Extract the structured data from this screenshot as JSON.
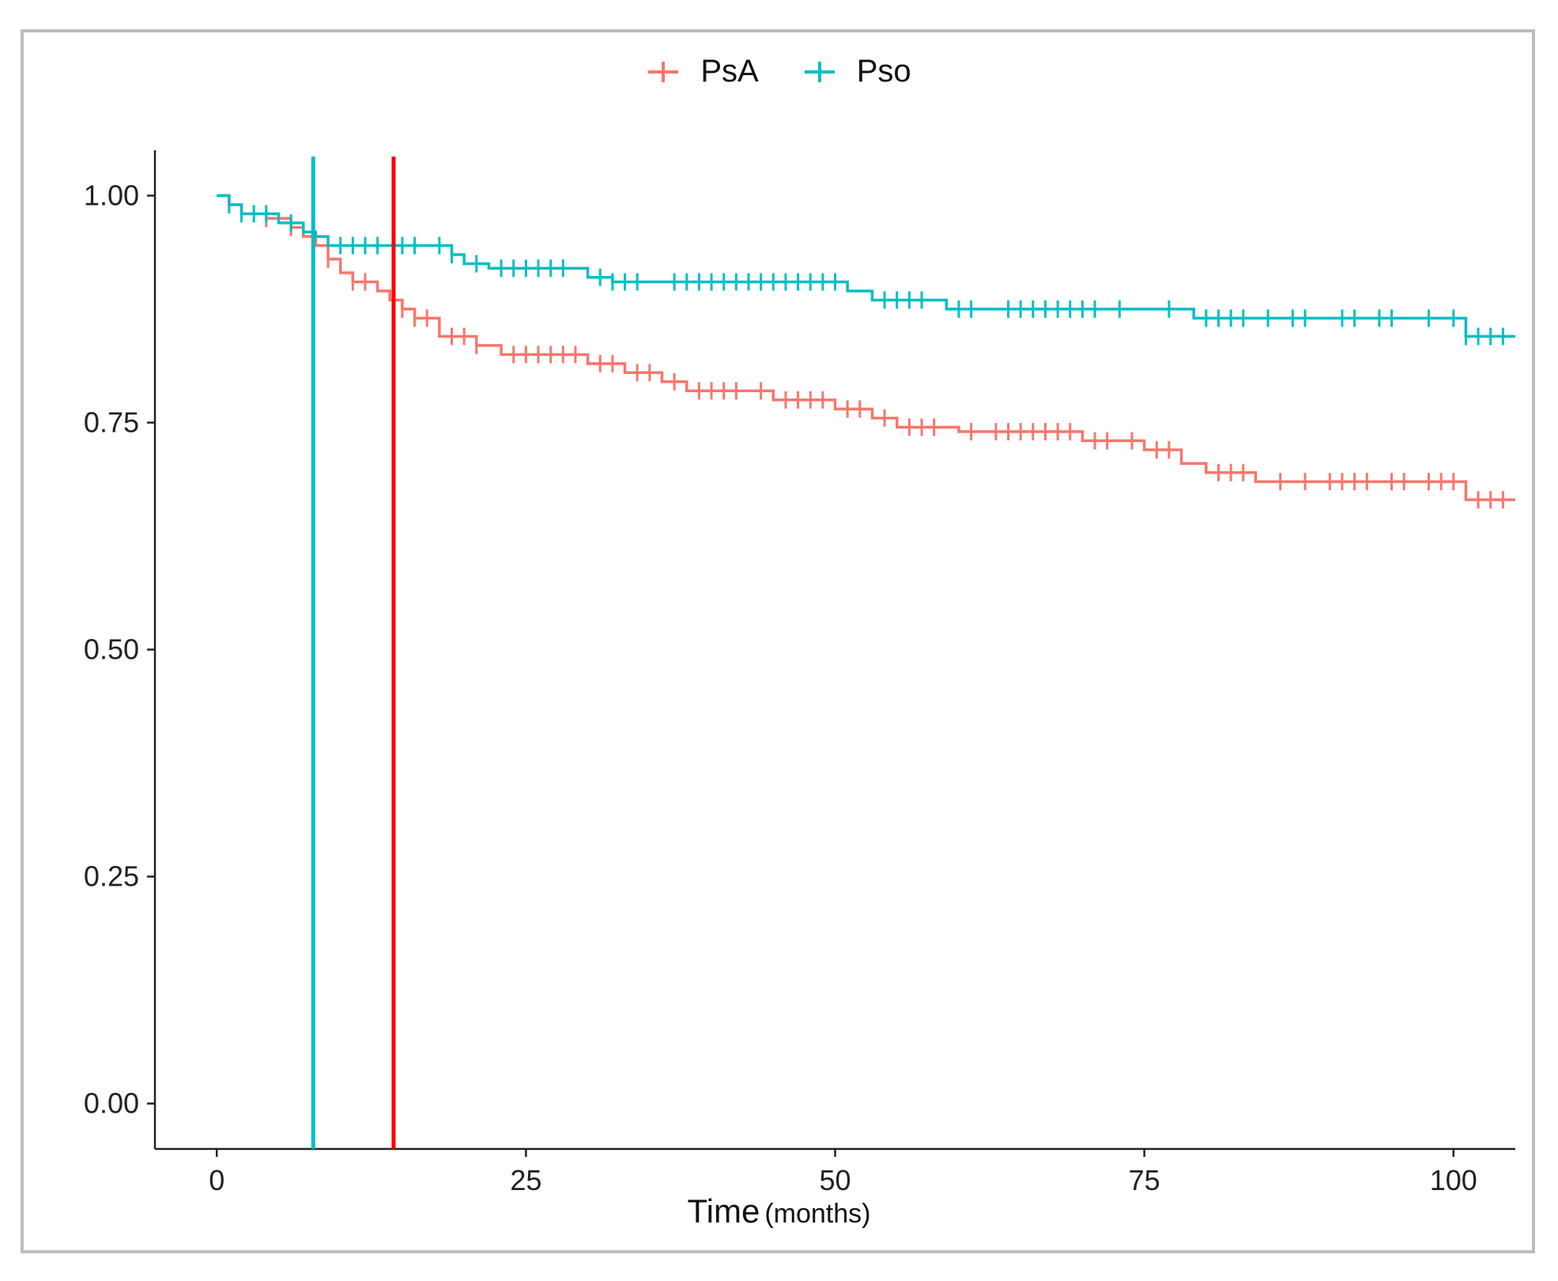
{
  "chart_data": {
    "type": "line",
    "subtype": "kaplan-meier step",
    "title": "",
    "xlabel": "Time",
    "xlabel_unit": "(months)",
    "ylabel": "",
    "xlim": [
      -5,
      105
    ],
    "ylim": [
      -0.05,
      1.05
    ],
    "x_ticks": [
      0,
      25,
      50,
      75,
      100
    ],
    "y_ticks": [
      0.0,
      0.25,
      0.5,
      0.75,
      1.0
    ],
    "x_tick_labels": [
      "0",
      "25",
      "50",
      "75",
      "100"
    ],
    "y_tick_labels": [
      "0.00",
      "0.25",
      "0.50",
      "0.75",
      "1.00"
    ],
    "grid": false,
    "legend_position": "top",
    "series": [
      {
        "name": "PsA",
        "color": "#F8766D",
        "steps": [
          [
            0,
            1.0
          ],
          [
            1,
            0.99
          ],
          [
            2,
            0.98
          ],
          [
            4,
            0.975
          ],
          [
            6,
            0.965
          ],
          [
            7,
            0.955
          ],
          [
            8,
            0.945
          ],
          [
            9,
            0.93
          ],
          [
            10,
            0.915
          ],
          [
            11,
            0.905
          ],
          [
            13,
            0.895
          ],
          [
            14,
            0.885
          ],
          [
            15,
            0.875
          ],
          [
            16,
            0.865
          ],
          [
            18,
            0.845
          ],
          [
            21,
            0.835
          ],
          [
            23,
            0.825
          ],
          [
            30,
            0.815
          ],
          [
            33,
            0.805
          ],
          [
            36,
            0.795
          ],
          [
            38,
            0.785
          ],
          [
            45,
            0.775
          ],
          [
            50,
            0.765
          ],
          [
            53,
            0.755
          ],
          [
            55,
            0.745
          ],
          [
            60,
            0.74
          ],
          [
            70,
            0.73
          ],
          [
            75,
            0.72
          ],
          [
            78,
            0.705
          ],
          [
            80,
            0.695
          ],
          [
            84,
            0.685
          ],
          [
            101,
            0.665
          ],
          [
            105,
            0.665
          ]
        ],
        "censor_times": [
          4,
          6,
          9,
          11,
          12,
          15,
          16,
          17,
          19,
          20,
          21,
          24,
          25,
          26,
          27,
          28,
          29,
          31,
          32,
          34,
          35,
          37,
          39,
          40,
          41,
          42,
          44,
          46,
          47,
          48,
          49,
          51,
          52,
          54,
          56,
          57,
          58,
          61,
          63,
          64,
          65,
          66,
          67,
          68,
          69,
          71,
          72,
          74,
          76,
          77,
          81,
          82,
          83,
          86,
          88,
          90,
          91,
          92,
          93,
          95,
          96,
          98,
          99,
          100,
          102,
          103,
          104
        ]
      },
      {
        "name": "Pso",
        "color": "#00BFC4",
        "steps": [
          [
            0,
            1.0
          ],
          [
            1,
            0.99
          ],
          [
            2,
            0.98
          ],
          [
            5,
            0.97
          ],
          [
            7,
            0.96
          ],
          [
            8,
            0.955
          ],
          [
            9,
            0.945
          ],
          [
            19,
            0.935
          ],
          [
            20,
            0.925
          ],
          [
            22,
            0.92
          ],
          [
            30,
            0.91
          ],
          [
            32,
            0.905
          ],
          [
            51,
            0.895
          ],
          [
            53,
            0.885
          ],
          [
            59,
            0.875
          ],
          [
            79,
            0.865
          ],
          [
            101,
            0.845
          ],
          [
            105,
            0.845
          ]
        ],
        "censor_times": [
          1,
          2,
          3,
          4,
          6,
          10,
          11,
          12,
          13,
          15,
          16,
          18,
          19,
          21,
          23,
          24,
          25,
          26,
          27,
          28,
          31,
          32,
          33,
          34,
          37,
          38,
          39,
          40,
          41,
          42,
          43,
          44,
          45,
          46,
          47,
          48,
          49,
          50,
          54,
          55,
          56,
          57,
          60,
          61,
          64,
          65,
          66,
          67,
          68,
          69,
          70,
          71,
          73,
          77,
          80,
          81,
          82,
          83,
          85,
          87,
          88,
          91,
          92,
          94,
          95,
          98,
          100,
          101,
          102,
          103,
          104
        ]
      }
    ],
    "vertical_lines": [
      {
        "name": "Pso median follow-up line",
        "x": 7.8,
        "color": "#00BFC4"
      },
      {
        "name": "PsA median follow-up line",
        "x": 14.3,
        "color": "#FF0000"
      }
    ]
  }
}
